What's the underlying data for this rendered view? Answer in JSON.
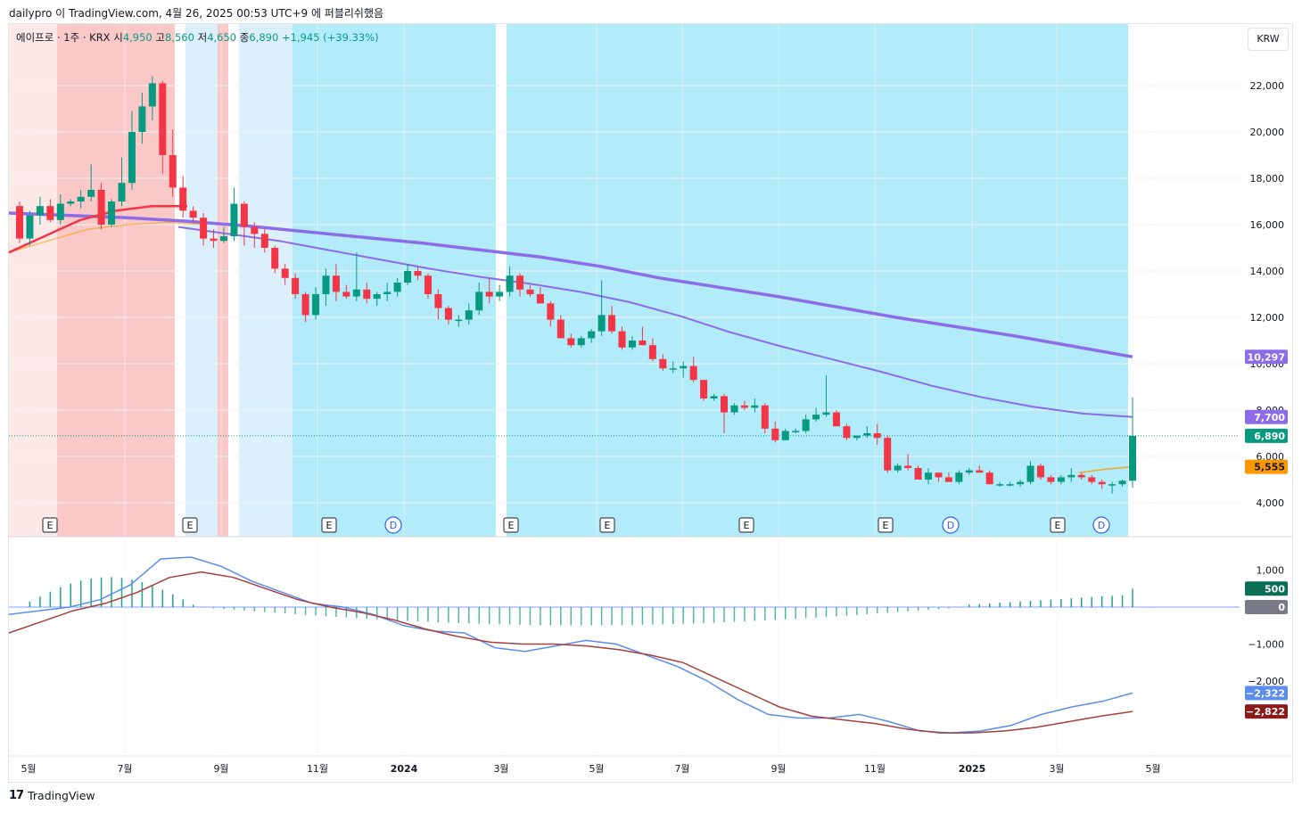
{
  "caption": "dailypro 이 TradingView.com, 4월 26, 2025 00:53 UTC+9 에 퍼블리쉬했음",
  "legend": {
    "symbol": "에이프로 · 1주 · KRX",
    "open_label": "시",
    "open": "4,950",
    "high_label": "고",
    "high": "8,560",
    "low_label": "저",
    "low": "4,650",
    "close_label": "종",
    "close": "6,890",
    "change": "+1,945 (+39.33%)"
  },
  "currency": "KRW",
  "footer": {
    "brand": "TradingView",
    "mark": "17"
  },
  "colors": {
    "up": "#089981",
    "down": "#f23645",
    "ma_long": "#8c6ce8",
    "ma_mid": "#8c6ce8",
    "ma_short": "#f5a623",
    "macd": "#5b8def",
    "signal": "#a5403b",
    "bg_cyan": "#b2ebfa",
    "bg_pink": "#fbc8c8",
    "bg_light_pink": "#fde8e8",
    "bg_light_blue": "#dcf0fb"
  },
  "chart_data": [
    {
      "type": "candlestick",
      "interval": "1주",
      "y_axis": {
        "ticks": [
          "4,000",
          "6,000",
          "8,000",
          "10,000",
          "12,000",
          "14,000",
          "16,000",
          "18,000",
          "20,000",
          "22,000"
        ],
        "values": [
          4000,
          6000,
          8000,
          10000,
          12000,
          14000,
          16000,
          18000,
          20000,
          22000
        ]
      },
      "x_axis": {
        "labels": [
          "5월",
          "7월",
          "9월",
          "11월",
          "2024",
          "3월",
          "5월",
          "7월",
          "9월",
          "11월",
          "2025",
          "3월",
          "5월"
        ]
      },
      "candles": [
        [
          16800,
          17000,
          15200,
          15400
        ],
        [
          15400,
          16600,
          15100,
          16400
        ],
        [
          16400,
          17200,
          16000,
          16800
        ],
        [
          16800,
          17100,
          16100,
          16200
        ],
        [
          16200,
          17300,
          16000,
          16900
        ],
        [
          16900,
          17100,
          16800,
          17000
        ],
        [
          17000,
          17500,
          16700,
          17200
        ],
        [
          17200,
          18600,
          17000,
          17500
        ],
        [
          17500,
          17800,
          15800,
          16000
        ],
        [
          16000,
          17100,
          15900,
          17000
        ],
        [
          17000,
          18900,
          16800,
          17800
        ],
        [
          17800,
          20900,
          17500,
          20000
        ],
        [
          20000,
          21700,
          19500,
          21100
        ],
        [
          21100,
          22400,
          20500,
          22100
        ],
        [
          22100,
          22200,
          18200,
          19000
        ],
        [
          19000,
          20100,
          17200,
          17600
        ],
        [
          17600,
          18100,
          16300,
          16600
        ],
        [
          16600,
          16800,
          16100,
          16300
        ],
        [
          16300,
          16500,
          15100,
          15400
        ],
        [
          15400,
          15800,
          15000,
          15300
        ],
        [
          15300,
          15900,
          15200,
          15500
        ],
        [
          15500,
          17600,
          15300,
          16900
        ],
        [
          16900,
          17000,
          15100,
          15900
        ],
        [
          15900,
          16100,
          15000,
          15600
        ],
        [
          15600,
          15800,
          14800,
          15000
        ],
        [
          15000,
          15100,
          13900,
          14100
        ],
        [
          14100,
          14300,
          13400,
          13700
        ],
        [
          13700,
          13900,
          12800,
          13000
        ],
        [
          13000,
          13100,
          11800,
          12100
        ],
        [
          12100,
          13300,
          11900,
          13000
        ],
        [
          13000,
          14100,
          12500,
          13800
        ],
        [
          13800,
          14300,
          12700,
          13100
        ],
        [
          13100,
          13400,
          12800,
          12900
        ],
        [
          12900,
          14800,
          12700,
          13200
        ],
        [
          13200,
          13500,
          12600,
          12800
        ],
        [
          12800,
          13100,
          12500,
          13000
        ],
        [
          13000,
          13500,
          12700,
          13100
        ],
        [
          13100,
          13700,
          12900,
          13500
        ],
        [
          13500,
          14300,
          13400,
          14000
        ],
        [
          14000,
          14200,
          13600,
          13800
        ],
        [
          13800,
          13900,
          12800,
          13000
        ],
        [
          13000,
          13200,
          11900,
          12400
        ],
        [
          12400,
          12500,
          11700,
          11900
        ],
        [
          11900,
          12100,
          11600,
          11900
        ],
        [
          11900,
          12600,
          11700,
          12300
        ],
        [
          12300,
          13500,
          12100,
          13100
        ],
        [
          13100,
          13700,
          12600,
          12900
        ],
        [
          12900,
          13400,
          12700,
          13100
        ],
        [
          13100,
          14200,
          12900,
          13800
        ],
        [
          13800,
          13900,
          12900,
          13200
        ],
        [
          13200,
          13400,
          12900,
          13000
        ],
        [
          13000,
          13300,
          12600,
          12600
        ],
        [
          12600,
          12700,
          11600,
          11900
        ],
        [
          11900,
          12100,
          11100,
          11100
        ],
        [
          11100,
          11300,
          10700,
          10800
        ],
        [
          10800,
          11200,
          10700,
          11100
        ],
        [
          11100,
          11500,
          10900,
          11400
        ],
        [
          11400,
          13600,
          11200,
          12100
        ],
        [
          12100,
          12500,
          11300,
          11400
        ],
        [
          11400,
          11600,
          10600,
          10700
        ],
        [
          10700,
          11200,
          10600,
          11000
        ],
        [
          11000,
          11600,
          10800,
          10800
        ],
        [
          10800,
          11100,
          10100,
          10200
        ],
        [
          10200,
          10400,
          9700,
          9800
        ],
        [
          9800,
          10100,
          9600,
          9800
        ],
        [
          9800,
          10100,
          9400,
          9900
        ],
        [
          9900,
          10300,
          9200,
          9300
        ],
        [
          9300,
          9300,
          8400,
          8500
        ],
        [
          8500,
          8700,
          8400,
          8600
        ],
        [
          8600,
          8700,
          7000,
          7900
        ],
        [
          7900,
          8300,
          7800,
          8200
        ],
        [
          8200,
          8400,
          8000,
          8100
        ],
        [
          8100,
          8500,
          7900,
          8200
        ],
        [
          8200,
          8300,
          7000,
          7200
        ],
        [
          7200,
          7500,
          6600,
          6700
        ],
        [
          6700,
          7200,
          6700,
          7100
        ],
        [
          7100,
          7200,
          7000,
          7100
        ],
        [
          7100,
          7800,
          7000,
          7600
        ],
        [
          7600,
          8100,
          7500,
          7800
        ],
        [
          7800,
          9500,
          7700,
          7900
        ],
        [
          7900,
          8000,
          7300,
          7300
        ],
        [
          7300,
          7400,
          6700,
          6800
        ],
        [
          6800,
          6900,
          6700,
          6900
        ],
        [
          6900,
          7300,
          6800,
          7000
        ],
        [
          7000,
          7400,
          6500,
          6800
        ],
        [
          6800,
          6900,
          5300,
          5400
        ],
        [
          5400,
          5700,
          5300,
          5600
        ],
        [
          5600,
          6100,
          5400,
          5500
        ],
        [
          5500,
          5600,
          5000,
          5000
        ],
        [
          5000,
          5500,
          4800,
          5300
        ],
        [
          5300,
          5300,
          4900,
          5100
        ],
        [
          5100,
          5300,
          4900,
          4900
        ],
        [
          4900,
          5400,
          4800,
          5300
        ],
        [
          5300,
          5500,
          5200,
          5400
        ],
        [
          5400,
          5600,
          5300,
          5300
        ],
        [
          5300,
          5400,
          4800,
          4800
        ],
        [
          4800,
          4900,
          4700,
          4800
        ],
        [
          4800,
          4900,
          4700,
          4800
        ],
        [
          4800,
          5000,
          4700,
          4900
        ],
        [
          4900,
          5800,
          4800,
          5600
        ],
        [
          5600,
          5700,
          5000,
          5100
        ],
        [
          5100,
          5200,
          4800,
          4900
        ],
        [
          4900,
          5200,
          4800,
          5100
        ],
        [
          5100,
          5500,
          4900,
          5200
        ],
        [
          5200,
          5300,
          5000,
          5100
        ],
        [
          5100,
          5200,
          4800,
          4900
        ],
        [
          4900,
          5000,
          4600,
          4800
        ],
        [
          4800,
          4900,
          4400,
          4800
        ],
        [
          4800,
          5000,
          4700,
          4950
        ],
        [
          4950,
          8560,
          4650,
          6890
        ]
      ],
      "ma_long": [
        16500,
        16400,
        16300,
        16150,
        15950,
        15700,
        15450,
        15200,
        14900,
        14600,
        14200,
        13700,
        13300,
        12900,
        12450,
        12000,
        11600,
        11200,
        10750,
        10297
      ],
      "ma_mid": [
        15900,
        15600,
        15300,
        14900,
        14500,
        14100,
        13750,
        13450,
        13100,
        12650,
        12050,
        11350,
        10750,
        10200,
        9650,
        9050,
        8550,
        8150,
        7850,
        7700
      ],
      "ma_short": [
        14800,
        15300,
        15800,
        16000,
        16100,
        16000
      ],
      "ma_red": [
        14800,
        15500,
        16200,
        16600,
        16800,
        16800
      ],
      "last_labels": {
        "ma_long": "10,297",
        "ma_mid": "7,700",
        "close": "6,890",
        "ma_short": "5,555"
      },
      "event_markers": [
        {
          "type": "E",
          "label": "E"
        },
        {
          "type": "E",
          "label": "E"
        },
        {
          "type": "E",
          "label": "E"
        },
        {
          "type": "D",
          "label": "D"
        },
        {
          "type": "E",
          "label": "E"
        },
        {
          "type": "E",
          "label": "E"
        },
        {
          "type": "E",
          "label": "E"
        },
        {
          "type": "E",
          "label": "E"
        },
        {
          "type": "D",
          "label": "D"
        },
        {
          "type": "E",
          "label": "E"
        },
        {
          "type": "D",
          "label": "D"
        }
      ]
    },
    {
      "type": "line",
      "name": "MACD",
      "y_axis": {
        "ticks": [
          "1,000",
          "−1,000",
          "−2,000"
        ],
        "values": [
          1000,
          -1000,
          -2000
        ]
      },
      "macd": [
        -200,
        -100,
        0,
        200,
        600,
        1300,
        1350,
        1100,
        700,
        400,
        100,
        0,
        -200,
        -500,
        -650,
        -700,
        -1100,
        -1200,
        -1050,
        -900,
        -1000,
        -1300,
        -1600,
        -2000,
        -2500,
        -2900,
        -3000,
        -3000,
        -2900,
        -3100,
        -3350,
        -3400,
        -3350,
        -3200,
        -2900,
        -2700,
        -2550,
        -2322
      ],
      "signal": [
        -700,
        -400,
        -100,
        100,
        400,
        800,
        950,
        800,
        500,
        200,
        0,
        -150,
        -350,
        -600,
        -800,
        -950,
        -1000,
        -1000,
        -1050,
        -1150,
        -1300,
        -1500,
        -1900,
        -2300,
        -2700,
        -2950,
        -3050,
        -3150,
        -3300,
        -3400,
        -3400,
        -3350,
        -3250,
        -3100,
        -2950,
        -2822
      ],
      "histogram_last": "500",
      "zero_label": "0",
      "last_labels": {
        "macd": "−2,322",
        "signal": "−2,822"
      }
    }
  ]
}
